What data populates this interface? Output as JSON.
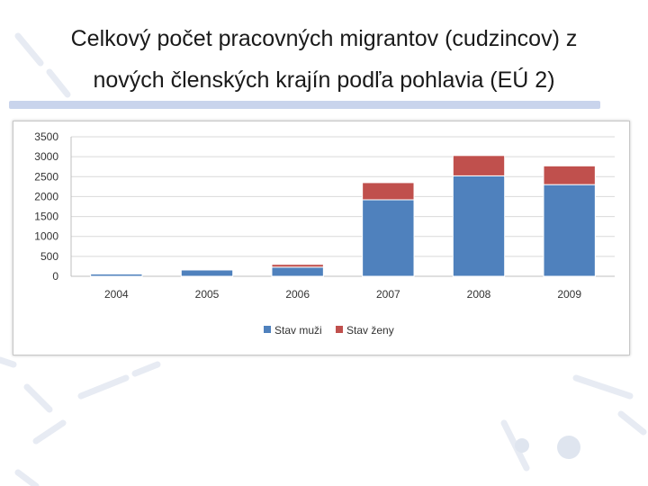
{
  "slide": {
    "title_line1": "Celkový počet pracovných migrantov (cudzincov) z",
    "title_line2": "nových členských krajín podľa pohlavia (EÚ 2)"
  },
  "chart_data": {
    "type": "bar",
    "stacked": true,
    "categories": [
      "2004",
      "2005",
      "2006",
      "2007",
      "2008",
      "2009"
    ],
    "series": [
      {
        "name": "Stav muži",
        "color": "#4f81bd",
        "values": [
          60,
          160,
          230,
          1920,
          2520,
          2300
        ]
      },
      {
        "name": "Stav ženy",
        "color": "#c0504d",
        "values": [
          10,
          20,
          70,
          430,
          510,
          470
        ]
      }
    ],
    "ylim": [
      0,
      3500
    ],
    "yticks": [
      0,
      500,
      1000,
      1500,
      2000,
      2500,
      3000,
      3500
    ],
    "grid": true,
    "legend": "bottom",
    "title": "",
    "xlabel": "",
    "ylabel": ""
  }
}
